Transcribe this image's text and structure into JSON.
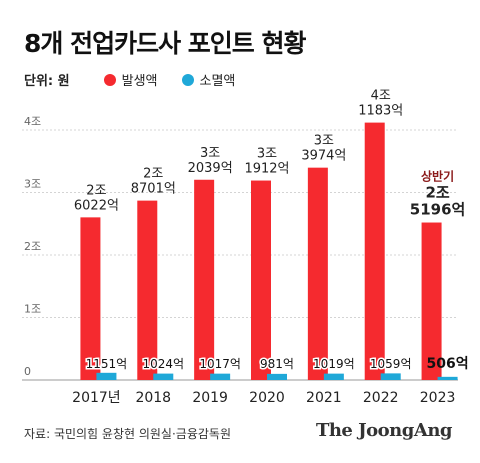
{
  "title": "8개 전업카드사 포인트 현황",
  "legend": {
    "unit": "단위: 원",
    "issued_label": "발생액",
    "expired_label": "소멸액",
    "issued_color": "#f52a2f",
    "expired_color": "#1fa8d8"
  },
  "source": "자료: 국민의힘 윤창현 의원실·금융감독원",
  "logo": "The JoongAng",
  "chart_data": {
    "type": "bar",
    "categories": [
      "2017년",
      "2018",
      "2019",
      "2020",
      "2021",
      "2022",
      "2023"
    ],
    "ylim": [
      0,
      4.4
    ],
    "yticks": [
      {
        "value": 0,
        "label": "0"
      },
      {
        "value": 1,
        "label": "1조"
      },
      {
        "value": 2,
        "label": "2조"
      },
      {
        "value": 3,
        "label": "3조"
      },
      {
        "value": 4,
        "label": "4조"
      }
    ],
    "series": [
      {
        "name": "발생액",
        "color": "#f52a2f",
        "values": [
          2.6022,
          2.8701,
          3.2039,
          3.1912,
          3.3974,
          4.1183,
          2.5196
        ],
        "labels": [
          [
            "2조",
            "6022억"
          ],
          [
            "2조",
            "8701억"
          ],
          [
            "3조",
            "2039억"
          ],
          [
            "3조",
            "1912억"
          ],
          [
            "3조",
            "3974억"
          ],
          [
            "4조",
            "1183억"
          ],
          [
            "상반기",
            "2조",
            "5196억"
          ]
        ]
      },
      {
        "name": "소멸액",
        "color": "#1fa8d8",
        "values": [
          0.1151,
          0.1024,
          0.1017,
          0.0981,
          0.1019,
          0.1059,
          0.0506
        ],
        "labels": [
          "1151억",
          "1024억",
          "1017억",
          "981억",
          "1019억",
          "1059억",
          "506억"
        ]
      }
    ],
    "highlight_color": "#8b1a1a"
  }
}
